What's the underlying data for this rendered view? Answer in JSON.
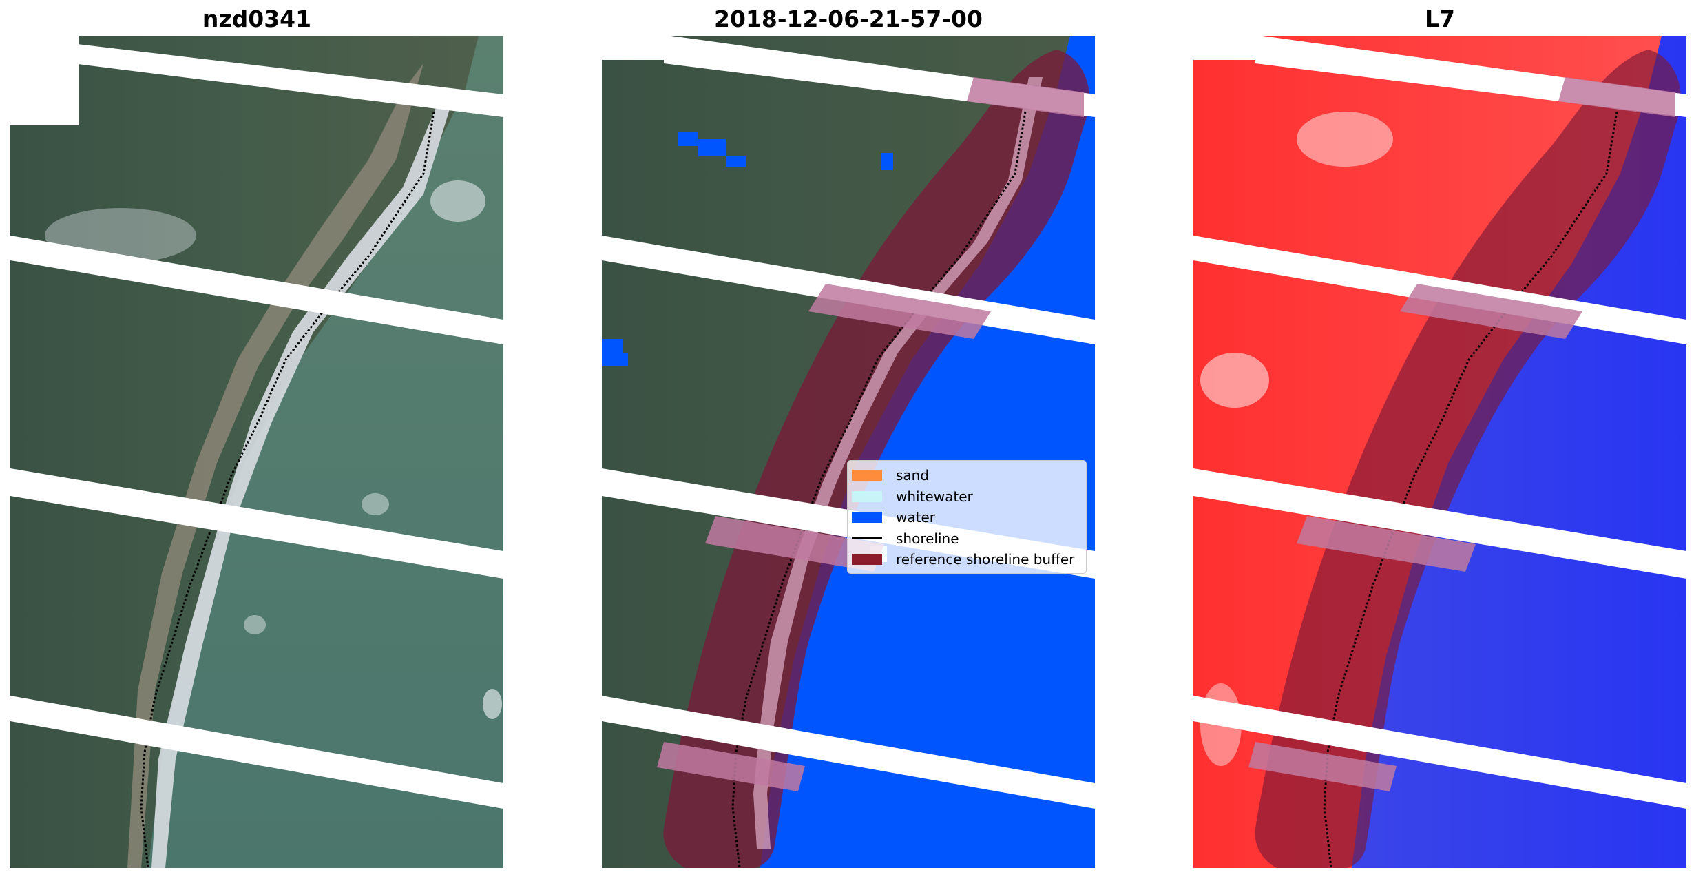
{
  "panels": [
    {
      "title": "nzd0341",
      "kind": "rgb"
    },
    {
      "title": "2018-12-06-21-57-00",
      "kind": "classified"
    },
    {
      "title": "L7",
      "kind": "index"
    }
  ],
  "legend": {
    "items": [
      {
        "label": "sand",
        "color": "#ff8c3a",
        "type": "patch"
      },
      {
        "label": "whitewater",
        "color": "#c8f4f8",
        "type": "patch"
      },
      {
        "label": "water",
        "color": "#0055ff",
        "type": "patch"
      },
      {
        "label": "shoreline",
        "color": "#000000",
        "type": "line"
      },
      {
        "label": "reference shoreline buffer",
        "color": "#8c1c2c",
        "type": "patch"
      }
    ]
  },
  "colors": {
    "land": "#3f5a48",
    "sea_rgb": "#4f7a70",
    "surf": "#d8dde2",
    "water_class": "#0055ff",
    "buffer": "#7b1838",
    "index_land": "#ff2020",
    "index_water": "#2430f0",
    "scanline_gap": "#ffffff"
  }
}
